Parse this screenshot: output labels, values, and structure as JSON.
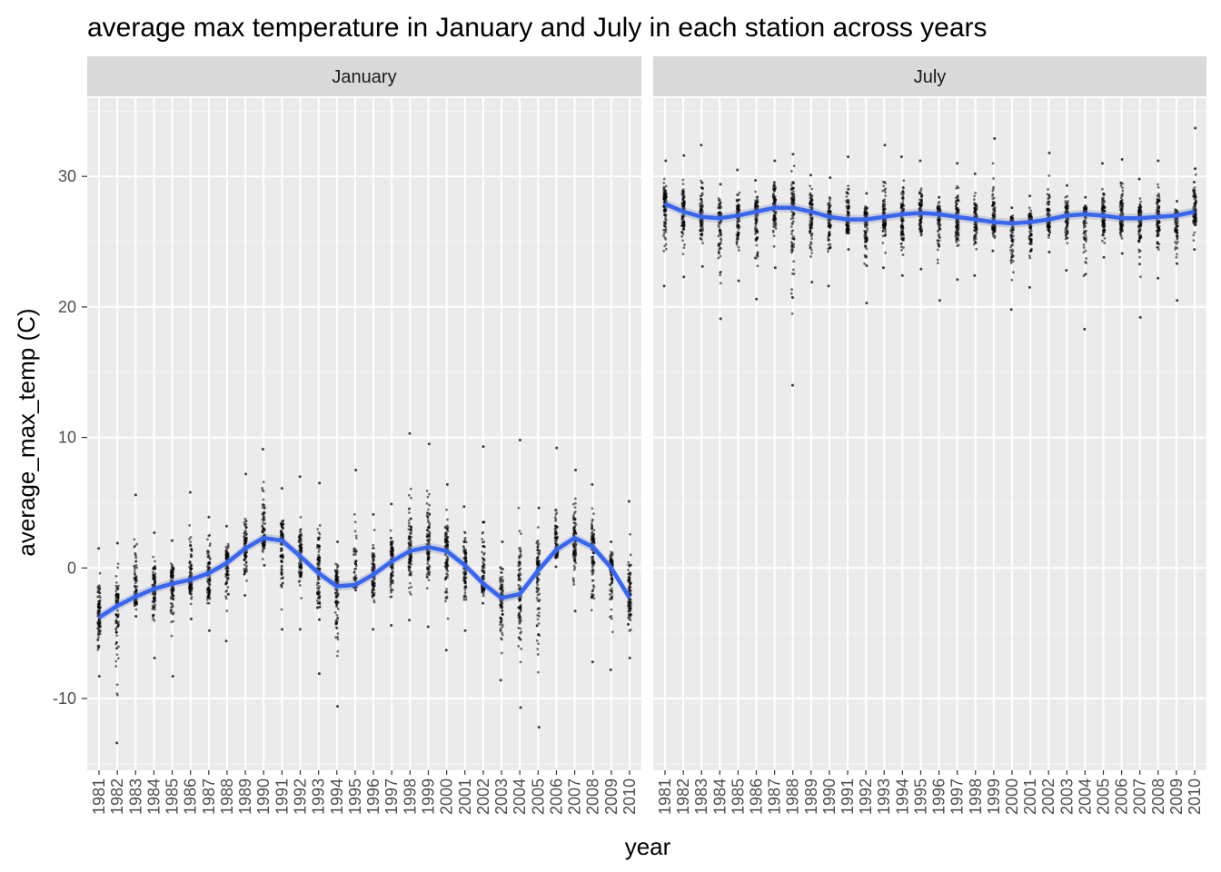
{
  "chart_data": {
    "type": "scatter",
    "title": "average max temperature in January and July in each station across years",
    "xlabel": "year",
    "ylabel": "average_max_temp (C)",
    "x_categories": [
      "1981",
      "1982",
      "1983",
      "1984",
      "1985",
      "1986",
      "1987",
      "1988",
      "1989",
      "1990",
      "1991",
      "1992",
      "1993",
      "1994",
      "1995",
      "1996",
      "1997",
      "1998",
      "1999",
      "2000",
      "2001",
      "2002",
      "2003",
      "2004",
      "2005",
      "2006",
      "2007",
      "2008",
      "2009",
      "2010"
    ],
    "ylim": [
      -15.5,
      36
    ],
    "y_ticks": [
      -10,
      0,
      10,
      20,
      30
    ],
    "grid": true,
    "smooth_color": "#3366FF",
    "point_color": "#000000",
    "panel_background": "#EBEBEB",
    "strip_background": "#D9D9D9",
    "panels": [
      {
        "name": "January",
        "smooth": [
          -3.8,
          -2.9,
          -2.2,
          -1.6,
          -1.2,
          -0.9,
          -0.4,
          0.4,
          1.5,
          2.3,
          2.1,
          0.9,
          -0.4,
          -1.4,
          -1.3,
          -0.5,
          0.5,
          1.3,
          1.6,
          1.3,
          0.2,
          -1.2,
          -2.3,
          -2.0,
          -0.2,
          1.4,
          2.3,
          1.6,
          0.0,
          -2.3
        ],
        "point_max": [
          1.5,
          1.9,
          5.6,
          2.7,
          2.1,
          5.8,
          3.9,
          3.2,
          7.2,
          9.1,
          6.1,
          7.0,
          6.5,
          2.0,
          7.5,
          4.1,
          4.9,
          10.3,
          9.5,
          6.4,
          4.7,
          9.3,
          2.0,
          9.8,
          4.6,
          9.2,
          7.5,
          6.4,
          2.0,
          5.1
        ],
        "point_min": [
          -8.3,
          -13.4,
          -3.7,
          -6.9,
          -8.3,
          -3.9,
          -4.8,
          -5.6,
          -2.1,
          0.2,
          -4.7,
          -4.7,
          -8.1,
          -10.6,
          -1.7,
          -4.7,
          -4.4,
          -4.0,
          -4.5,
          -6.3,
          -4.8,
          -2.7,
          -8.6,
          -10.7,
          -12.2,
          0.1,
          -3.3,
          -7.2,
          -7.8,
          -6.9
        ]
      },
      {
        "name": "July",
        "smooth": [
          27.9,
          27.3,
          26.9,
          26.8,
          27.0,
          27.3,
          27.6,
          27.6,
          27.3,
          26.9,
          26.7,
          26.7,
          26.9,
          27.1,
          27.2,
          27.1,
          26.9,
          26.7,
          26.5,
          26.4,
          26.5,
          26.7,
          27.0,
          27.1,
          27.0,
          26.8,
          26.8,
          26.9,
          27.0,
          27.3
        ],
        "point_max": [
          31.2,
          31.6,
          32.4,
          29.4,
          30.5,
          29.7,
          31.2,
          31.7,
          30.1,
          29.9,
          31.5,
          28.7,
          32.4,
          31.5,
          31.2,
          28.4,
          31.0,
          30.2,
          32.9,
          27.6,
          28.5,
          31.8,
          29.3,
          28.4,
          31.0,
          31.3,
          29.8,
          31.2,
          28.1,
          33.7
        ],
        "point_min": [
          21.6,
          22.3,
          23.1,
          19.1,
          22.0,
          20.6,
          23.0,
          14.0,
          21.9,
          21.6,
          24.4,
          20.3,
          23.0,
          22.4,
          22.9,
          20.5,
          22.1,
          22.4,
          24.3,
          19.8,
          21.5,
          24.2,
          22.8,
          18.3,
          23.8,
          24.1,
          19.2,
          22.2,
          20.5,
          24.4
        ]
      }
    ]
  }
}
